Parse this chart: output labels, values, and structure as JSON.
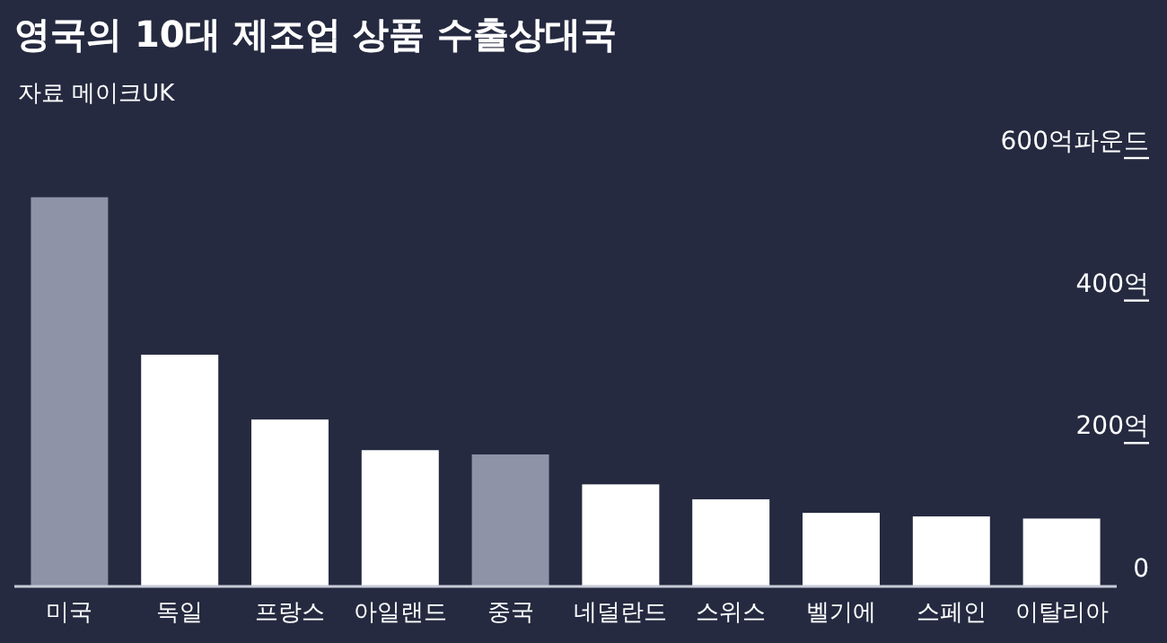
{
  "chart_data": {
    "type": "bar",
    "title": "영국의 10대 제조업 상품 수출상대국",
    "annotations": [
      "자료 메이크UK"
    ],
    "categories": [
      "미국",
      "독일",
      "프랑스",
      "아일랜드",
      "중국",
      "네덜란드",
      "스위스",
      "벨기에",
      "스페인",
      "이탈리아"
    ],
    "values": [
      545,
      324,
      233,
      190,
      184,
      142,
      121,
      102,
      97,
      94
    ],
    "colors": [
      "#8f93a8",
      "#ffffff",
      "#ffffff",
      "#ffffff",
      "#8f93a8",
      "#ffffff",
      "#ffffff",
      "#ffffff",
      "#ffffff",
      "#ffffff"
    ],
    "ylim": [
      0,
      600
    ],
    "yticks": [
      {
        "value": 0,
        "label": "0"
      },
      {
        "value": 200,
        "label": "200억"
      },
      {
        "value": 400,
        "label": "400억"
      },
      {
        "value": 600,
        "label": "600억파운드"
      }
    ]
  }
}
